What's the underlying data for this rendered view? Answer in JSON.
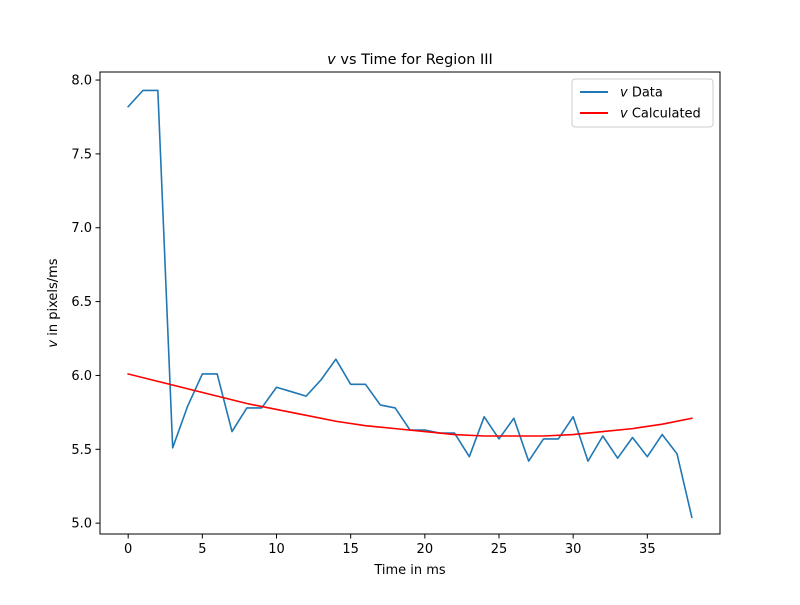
{
  "chart_data": {
    "type": "line",
    "title": "v vs Time for Region III",
    "title_symbol": "v",
    "title_rest": " vs Time for Region III",
    "xlabel": "Time in ms",
    "ylabel": "v in pixels/ms",
    "ylabel_symbol": "v",
    "ylabel_rest": " in pixels/ms",
    "xlim": [
      -1.9,
      39.9
    ],
    "ylim": [
      4.9265,
      8.0545
    ],
    "xticks": [
      0,
      5,
      10,
      15,
      20,
      25,
      30,
      35
    ],
    "xtick_labels": [
      "0",
      "5",
      "10",
      "15",
      "20",
      "25",
      "30",
      "35"
    ],
    "yticks": [
      5.0,
      5.5,
      6.0,
      6.5,
      7.0,
      7.5,
      8.0
    ],
    "ytick_labels": [
      "5.0",
      "5.5",
      "6.0",
      "6.5",
      "7.0",
      "7.5",
      "8.0"
    ],
    "grid": false,
    "legend_position": "top-right",
    "series": [
      {
        "name": "v Data",
        "legend_symbol": "v",
        "legend_rest": " Data",
        "color": "#1f77b4",
        "x": [
          0,
          1,
          2,
          3,
          4,
          5,
          6,
          7,
          8,
          9,
          10,
          11,
          12,
          13,
          14,
          15,
          16,
          17,
          18,
          19,
          20,
          21,
          22,
          23,
          24,
          25,
          26,
          27,
          28,
          29,
          30,
          31,
          32,
          33,
          34,
          35,
          36,
          37,
          38
        ],
        "y": [
          7.82,
          7.93,
          7.93,
          5.51,
          5.79,
          6.01,
          6.01,
          5.62,
          5.78,
          5.78,
          5.92,
          5.89,
          5.86,
          5.97,
          6.11,
          5.94,
          5.94,
          5.8,
          5.78,
          5.63,
          5.63,
          5.61,
          5.61,
          5.45,
          5.72,
          5.57,
          5.71,
          5.42,
          5.57,
          5.57,
          5.72,
          5.42,
          5.59,
          5.44,
          5.58,
          5.45,
          5.6,
          5.47,
          5.04
        ]
      },
      {
        "name": "v Calculated",
        "legend_symbol": "v",
        "legend_rest": " Calculated",
        "color": "#ff0000",
        "x": [
          0,
          2,
          4,
          6,
          8,
          10,
          12,
          14,
          16,
          18,
          20,
          22,
          24,
          26,
          28,
          30,
          32,
          34,
          36,
          38
        ],
        "y": [
          6.01,
          5.96,
          5.91,
          5.86,
          5.81,
          5.77,
          5.73,
          5.69,
          5.66,
          5.64,
          5.62,
          5.6,
          5.59,
          5.59,
          5.59,
          5.6,
          5.62,
          5.64,
          5.67,
          5.71
        ]
      }
    ]
  }
}
